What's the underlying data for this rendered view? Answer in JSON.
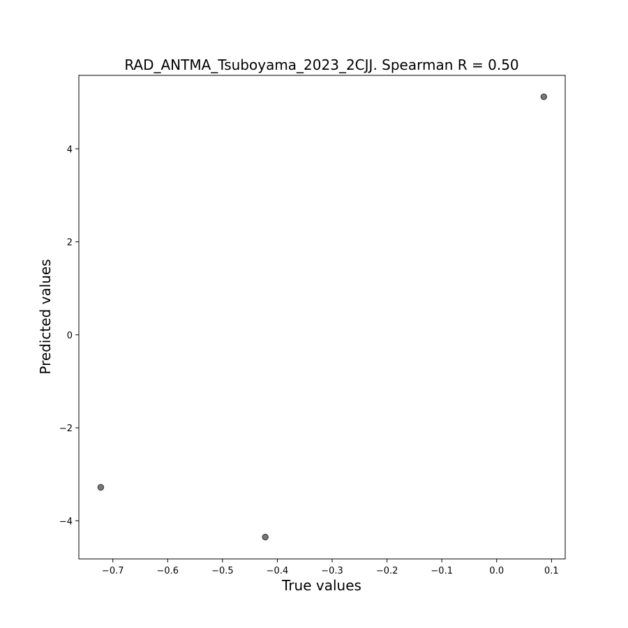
{
  "chart_data": {
    "type": "scatter",
    "title": "RAD_ANTMA_Tsuboyama_2023_2CJJ. Spearman R = 0.50",
    "xlabel": "True values",
    "ylabel": "Predicted values",
    "xlim": [
      -0.762,
      0.125
    ],
    "ylim": [
      -4.82,
      5.58
    ],
    "xticks": [
      -0.7,
      -0.6,
      -0.5,
      -0.4,
      -0.3,
      -0.2,
      -0.1,
      0.0,
      0.1
    ],
    "xtick_labels": [
      "−0.7",
      "−0.6",
      "−0.5",
      "−0.4",
      "−0.3",
      "−0.2",
      "−0.1",
      "0.0",
      "0.1"
    ],
    "yticks": [
      -4,
      -2,
      0,
      2,
      4
    ],
    "ytick_labels": [
      "−4",
      "−2",
      "0",
      "2",
      "4"
    ],
    "grid": false,
    "points": [
      {
        "x": -0.722,
        "y": -3.28
      },
      {
        "x": -0.422,
        "y": -4.35
      },
      {
        "x": 0.086,
        "y": 5.12
      }
    ],
    "point_color": "#555555"
  }
}
